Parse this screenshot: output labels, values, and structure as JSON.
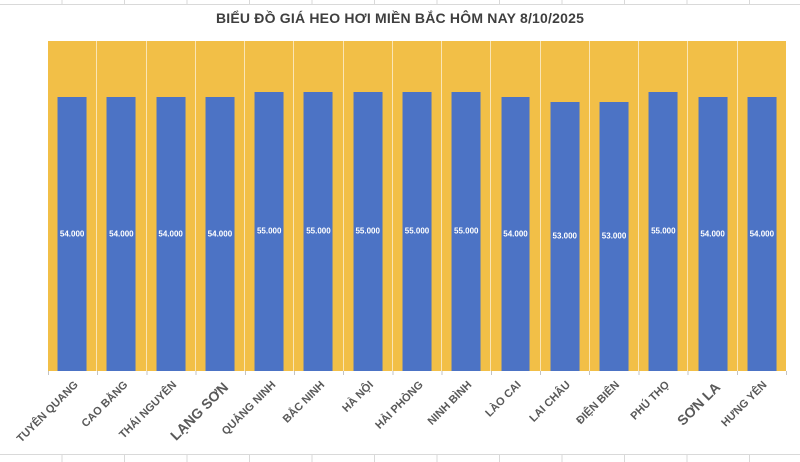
{
  "chart_data": {
    "type": "bar",
    "title": "BIỂU ĐỒ GIÁ HEO HƠI MIỀN BẮC HÔM NAY 8/10/2025",
    "categories": [
      "TUYÊN QUANG",
      "CAO BẰNG",
      "THÁI NGUYÊN",
      "LẠNG SƠN",
      "QUẢNG NINH",
      "BẮC NINH",
      "HÀ NỘI",
      "HẢI PHÒNG",
      "NINH BÌNH",
      "LÀO CAI",
      "LAI CHÂU",
      "ĐIỆN BIÊN",
      "PHÚ THỌ",
      "SƠN LA",
      "HƯNG YÊN"
    ],
    "values": [
      54000,
      54000,
      54000,
      54000,
      55000,
      55000,
      55000,
      55000,
      55000,
      54000,
      53000,
      53000,
      55000,
      54000,
      54000
    ],
    "value_labels": [
      "54.000",
      "54.000",
      "54.000",
      "54.000",
      "55.000",
      "55.000",
      "55.000",
      "55.000",
      "55.000",
      "54.000",
      "53.000",
      "53.000",
      "55.000",
      "54.000",
      "54.000"
    ],
    "emphasized_categories": [
      "LẠNG SƠN",
      "SƠN LA"
    ],
    "xlabel": "",
    "ylabel": "",
    "ylim": [
      0,
      65000
    ],
    "legend": "none",
    "grid": "vertical-category-separators",
    "data_label_position": "inside-center",
    "colors": {
      "bar": "#4C73C5",
      "plot_background": "#F2BF47",
      "data_label": "#FFFFFF",
      "axis_label": "#595959",
      "title": "#3F3F3F",
      "category_gridline": "rgba(255,255,255,0.6)",
      "sheet_gridline": "#D9D9D9"
    }
  }
}
